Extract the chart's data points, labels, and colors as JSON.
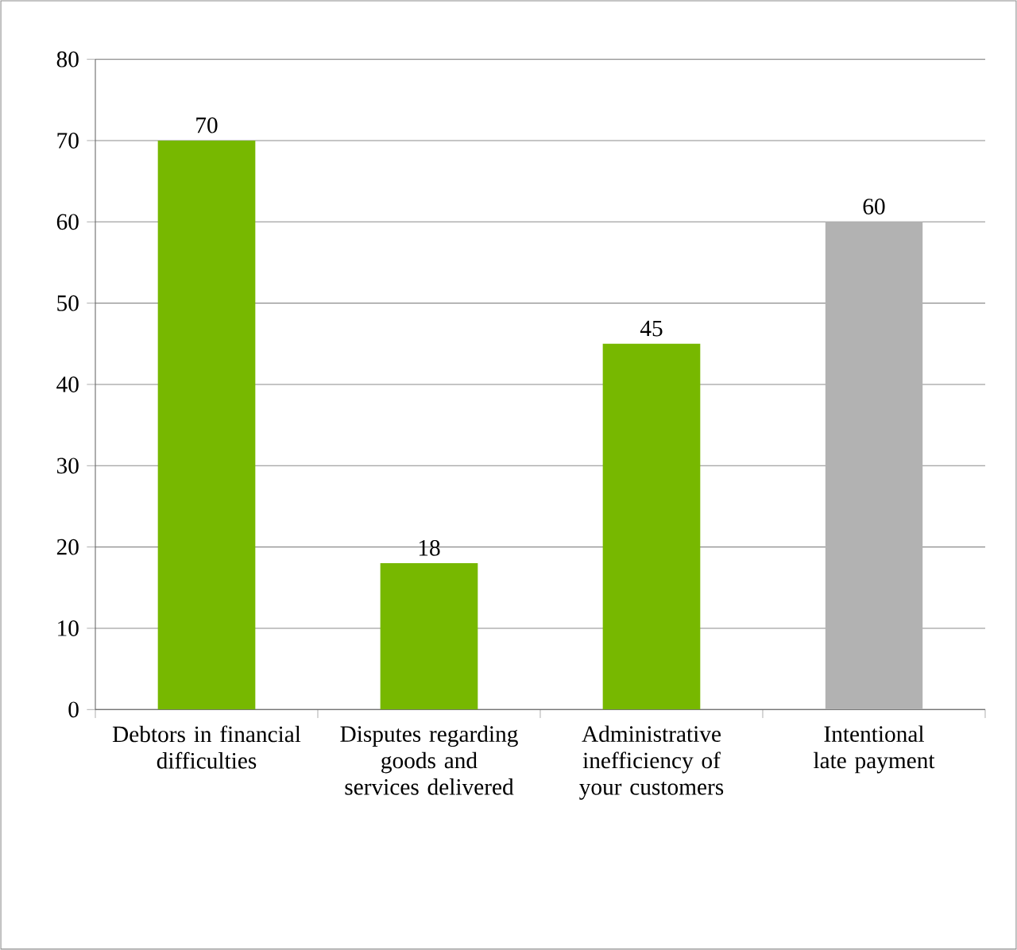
{
  "chart_data": {
    "type": "bar",
    "categories": [
      "Debtors in financial difficulties",
      "Disputes regarding goods and services delivered",
      "Administrative inefficiency of your customers",
      "Intentional late payment"
    ],
    "values": [
      70,
      18,
      45,
      60
    ],
    "colors": [
      "#77b800",
      "#77b800",
      "#77b800",
      "#b2b2b2"
    ],
    "ylim": [
      0,
      80
    ],
    "yticks": [
      0,
      10,
      20,
      30,
      40,
      50,
      60,
      70,
      80
    ],
    "grid": "y",
    "data_labels": true
  }
}
